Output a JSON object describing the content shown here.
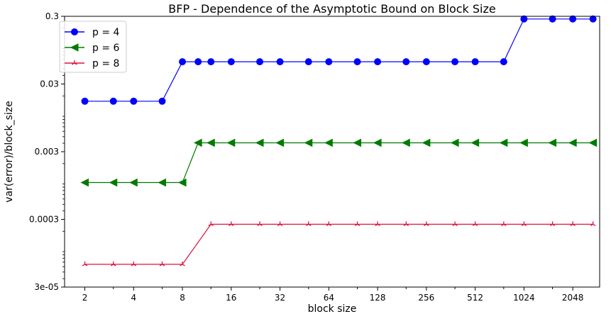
{
  "chart_data": {
    "type": "line",
    "title": "BFP - Dependence of the Asymptotic Bound on Block Size",
    "xlabel": "block size",
    "ylabel": "var(error)/block_size",
    "x_scale": "log2",
    "y_scale": "log10",
    "xlim": [
      1.5,
      3000
    ],
    "ylim": [
      3e-05,
      0.3
    ],
    "x_ticks": [
      2,
      4,
      8,
      16,
      32,
      64,
      128,
      256,
      512,
      1024,
      2048
    ],
    "x_tick_labels": [
      "2",
      "4",
      "8",
      "16",
      "32",
      "64",
      "128",
      "256",
      "512",
      "1024",
      "2048"
    ],
    "y_ticks": [
      3e-05,
      0.0003,
      0.003,
      0.03,
      0.3
    ],
    "y_tick_labels": [
      "3e-05",
      "0.0003",
      "0.003",
      "0.03",
      "0.3"
    ],
    "grid": false,
    "legend_position": "top-left",
    "series": [
      {
        "name": "p = 4",
        "color": "#0000ff",
        "marker": "circle",
        "x": [
          2,
          3,
          4,
          6,
          8,
          10,
          12,
          16,
          24,
          32,
          48,
          64,
          96,
          128,
          192,
          256,
          384,
          512,
          768,
          1024,
          1536,
          2048,
          2730
        ],
        "y": [
          0.0167,
          0.0167,
          0.0167,
          0.0167,
          0.0639,
          0.0639,
          0.0639,
          0.0639,
          0.0639,
          0.0639,
          0.0639,
          0.0639,
          0.0639,
          0.0639,
          0.0639,
          0.0639,
          0.0639,
          0.0639,
          0.0639,
          0.274,
          0.274,
          0.274,
          0.274
        ]
      },
      {
        "name": "p = 6",
        "color": "#007a00",
        "marker": "triangle-left",
        "x": [
          2,
          3,
          4,
          6,
          8,
          10,
          12,
          16,
          24,
          32,
          48,
          64,
          96,
          128,
          192,
          256,
          384,
          512,
          768,
          1024,
          1536,
          2048,
          2730
        ],
        "y": [
          0.00105,
          0.00105,
          0.00105,
          0.00105,
          0.00105,
          0.00406,
          0.00406,
          0.00406,
          0.00406,
          0.00406,
          0.00406,
          0.00406,
          0.00406,
          0.00406,
          0.00406,
          0.00406,
          0.00406,
          0.00406,
          0.00406,
          0.00406,
          0.00406,
          0.00406,
          0.00406
        ]
      },
      {
        "name": "p = 8",
        "color": "#dc143c",
        "marker": "tri",
        "x": [
          2,
          3,
          4,
          6,
          8,
          12,
          16,
          24,
          32,
          48,
          64,
          96,
          128,
          192,
          256,
          384,
          512,
          768,
          1024,
          1536,
          2048,
          2730
        ],
        "y": [
          6.5e-05,
          6.5e-05,
          6.5e-05,
          6.5e-05,
          6.5e-05,
          0.000254,
          0.000254,
          0.000254,
          0.000254,
          0.000254,
          0.000254,
          0.000254,
          0.000254,
          0.000254,
          0.000254,
          0.000254,
          0.000254,
          0.000254,
          0.000254,
          0.000254,
          0.000254,
          0.000254
        ]
      }
    ]
  }
}
